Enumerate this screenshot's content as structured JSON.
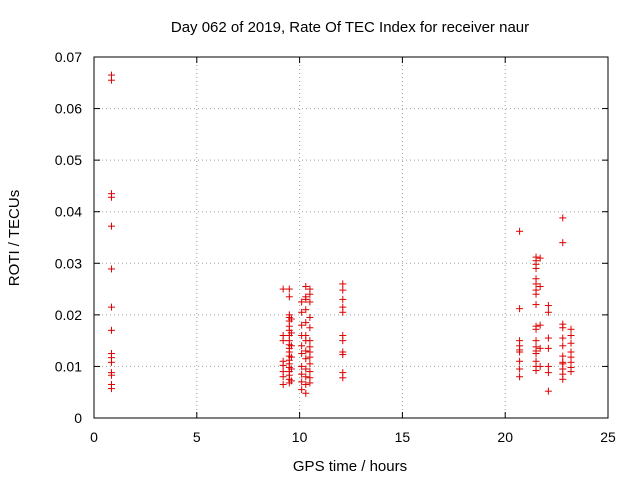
{
  "chart_data": {
    "type": "scatter",
    "title": "Day 062 of 2019, Rate Of TEC Index for receiver naur",
    "xlabel": "GPS time / hours",
    "ylabel": "ROTI / TECUs",
    "xlim": [
      0,
      25
    ],
    "ylim": [
      0,
      0.07
    ],
    "x_ticks": [
      0,
      5,
      10,
      15,
      20,
      25
    ],
    "y_ticks": [
      0,
      0.01,
      0.02,
      0.03,
      0.04,
      0.05,
      0.06,
      0.07
    ],
    "x_tick_labels": [
      "0",
      "5",
      "10",
      "15",
      "20",
      "25"
    ],
    "y_tick_labels": [
      "0",
      "0.01",
      "0.02",
      "0.03",
      "0.04",
      "0.05",
      "0.06",
      "0.07"
    ],
    "grid": true,
    "marker": "+",
    "marker_color": "#dd0000",
    "points": [
      [
        0.85,
        0.0665
      ],
      [
        0.85,
        0.0655
      ],
      [
        0.85,
        0.0435
      ],
      [
        0.85,
        0.0428
      ],
      [
        0.85,
        0.0372
      ],
      [
        0.85,
        0.0289
      ],
      [
        0.85,
        0.0215
      ],
      [
        0.85,
        0.017
      ],
      [
        0.85,
        0.0125
      ],
      [
        0.85,
        0.0117
      ],
      [
        0.85,
        0.0108
      ],
      [
        0.85,
        0.0088
      ],
      [
        0.85,
        0.0083
      ],
      [
        0.85,
        0.0065
      ],
      [
        0.85,
        0.0057
      ],
      [
        9.2,
        0.025
      ],
      [
        9.2,
        0.016
      ],
      [
        9.2,
        0.015
      ],
      [
        9.2,
        0.011
      ],
      [
        9.2,
        0.0102
      ],
      [
        9.2,
        0.009
      ],
      [
        9.2,
        0.008
      ],
      [
        9.2,
        0.0065
      ],
      [
        9.5,
        0.025
      ],
      [
        9.5,
        0.0235
      ],
      [
        9.5,
        0.02
      ],
      [
        9.5,
        0.0195
      ],
      [
        9.5,
        0.0188
      ],
      [
        9.5,
        0.0178
      ],
      [
        9.5,
        0.017
      ],
      [
        9.5,
        0.016
      ],
      [
        9.5,
        0.015
      ],
      [
        9.5,
        0.0142
      ],
      [
        9.5,
        0.0135
      ],
      [
        9.5,
        0.0128
      ],
      [
        9.5,
        0.012
      ],
      [
        9.5,
        0.0112
      ],
      [
        9.5,
        0.0105
      ],
      [
        9.5,
        0.0098
      ],
      [
        9.5,
        0.009
      ],
      [
        9.5,
        0.0083
      ],
      [
        9.5,
        0.0075
      ],
      [
        9.5,
        0.0068
      ],
      [
        9.6,
        0.0192
      ],
      [
        9.6,
        0.0165
      ],
      [
        9.6,
        0.014
      ],
      [
        9.6,
        0.0118
      ],
      [
        9.6,
        0.0095
      ],
      [
        9.6,
        0.0072
      ],
      [
        10.1,
        0.0225
      ],
      [
        10.1,
        0.0205
      ],
      [
        10.1,
        0.018
      ],
      [
        10.1,
        0.016
      ],
      [
        10.1,
        0.014
      ],
      [
        10.1,
        0.0125
      ],
      [
        10.1,
        0.01
      ],
      [
        10.1,
        0.0085
      ],
      [
        10.1,
        0.007
      ],
      [
        10.1,
        0.0055
      ],
      [
        10.3,
        0.0255
      ],
      [
        10.3,
        0.0235
      ],
      [
        10.3,
        0.023
      ],
      [
        10.3,
        0.021
      ],
      [
        10.3,
        0.0185
      ],
      [
        10.3,
        0.016
      ],
      [
        10.3,
        0.015
      ],
      [
        10.3,
        0.013
      ],
      [
        10.3,
        0.0115
      ],
      [
        10.3,
        0.0095
      ],
      [
        10.3,
        0.008
      ],
      [
        10.3,
        0.0065
      ],
      [
        10.3,
        0.0048
      ],
      [
        10.5,
        0.025
      ],
      [
        10.5,
        0.024
      ],
      [
        10.5,
        0.0225
      ],
      [
        10.5,
        0.0195
      ],
      [
        10.5,
        0.0175
      ],
      [
        10.5,
        0.015
      ],
      [
        10.5,
        0.0138
      ],
      [
        10.5,
        0.0128
      ],
      [
        10.5,
        0.0118
      ],
      [
        10.5,
        0.0105
      ],
      [
        10.5,
        0.009
      ],
      [
        10.5,
        0.0078
      ],
      [
        10.5,
        0.0068
      ],
      [
        12.1,
        0.026
      ],
      [
        12.1,
        0.0248
      ],
      [
        12.1,
        0.023
      ],
      [
        12.1,
        0.0215
      ],
      [
        12.1,
        0.0205
      ],
      [
        12.1,
        0.016
      ],
      [
        12.1,
        0.015
      ],
      [
        12.1,
        0.0128
      ],
      [
        12.1,
        0.0123
      ],
      [
        12.1,
        0.0088
      ],
      [
        12.1,
        0.0078
      ],
      [
        20.7,
        0.0362
      ],
      [
        20.7,
        0.0212
      ],
      [
        20.7,
        0.015
      ],
      [
        20.7,
        0.014
      ],
      [
        20.7,
        0.0132
      ],
      [
        20.7,
        0.0128
      ],
      [
        20.7,
        0.011
      ],
      [
        20.7,
        0.0095
      ],
      [
        20.7,
        0.008
      ],
      [
        21.5,
        0.0312
      ],
      [
        21.5,
        0.0305
      ],
      [
        21.5,
        0.0298
      ],
      [
        21.5,
        0.029
      ],
      [
        21.5,
        0.027
      ],
      [
        21.5,
        0.026
      ],
      [
        21.5,
        0.0248
      ],
      [
        21.5,
        0.024
      ],
      [
        21.5,
        0.022
      ],
      [
        21.5,
        0.0178
      ],
      [
        21.5,
        0.0172
      ],
      [
        21.5,
        0.015
      ],
      [
        21.5,
        0.0138
      ],
      [
        21.5,
        0.013
      ],
      [
        21.5,
        0.0125
      ],
      [
        21.5,
        0.011
      ],
      [
        21.5,
        0.01
      ],
      [
        21.5,
        0.0092
      ],
      [
        21.7,
        0.031
      ],
      [
        21.7,
        0.0255
      ],
      [
        21.7,
        0.018
      ],
      [
        21.7,
        0.0135
      ],
      [
        21.7,
        0.01
      ],
      [
        22.1,
        0.0218
      ],
      [
        22.1,
        0.0205
      ],
      [
        22.1,
        0.0155
      ],
      [
        22.1,
        0.0135
      ],
      [
        22.1,
        0.01
      ],
      [
        22.1,
        0.0088
      ],
      [
        22.1,
        0.0052
      ],
      [
        22.8,
        0.0388
      ],
      [
        22.8,
        0.034
      ],
      [
        22.8,
        0.0182
      ],
      [
        22.8,
        0.0175
      ],
      [
        22.8,
        0.0155
      ],
      [
        22.8,
        0.014
      ],
      [
        22.8,
        0.012
      ],
      [
        22.8,
        0.0108
      ],
      [
        22.8,
        0.0105
      ],
      [
        22.8,
        0.0095
      ],
      [
        22.8,
        0.0085
      ],
      [
        22.8,
        0.0075
      ],
      [
        23.2,
        0.0172
      ],
      [
        23.2,
        0.016
      ],
      [
        23.2,
        0.0145
      ],
      [
        23.2,
        0.0128
      ],
      [
        23.2,
        0.0118
      ],
      [
        23.2,
        0.0108
      ],
      [
        23.2,
        0.0098
      ],
      [
        23.2,
        0.009
      ]
    ]
  }
}
